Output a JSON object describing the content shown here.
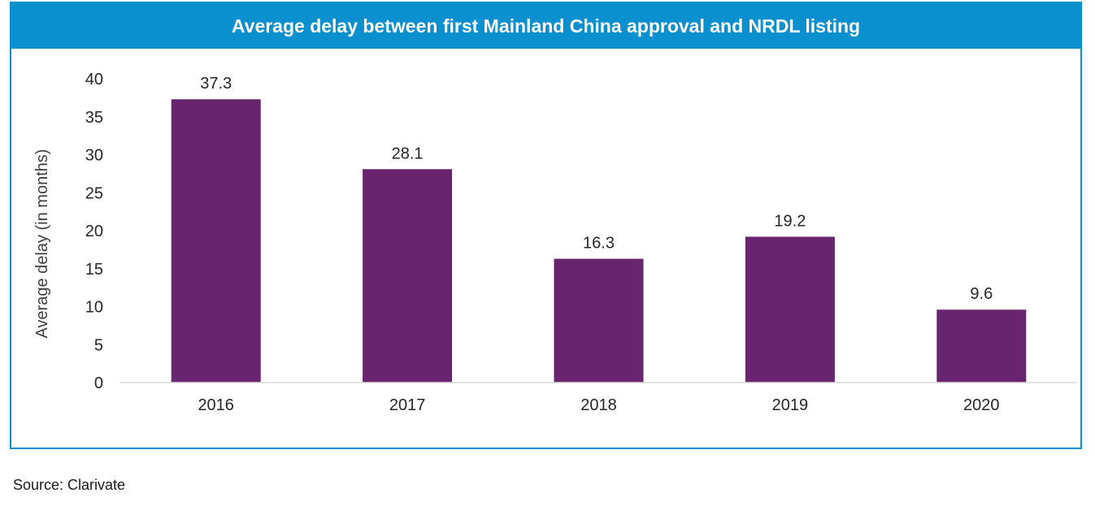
{
  "chart_data": {
    "type": "bar",
    "title": "Average delay between first Mainland China approval and NRDL listing",
    "categories": [
      "2016",
      "2017",
      "2018",
      "2019",
      "2020"
    ],
    "values": [
      37.3,
      28.1,
      16.3,
      19.2,
      9.6
    ],
    "data_labels": [
      "37.3",
      "28.1",
      "16.3",
      "19.2",
      "9.6"
    ],
    "xlabel": "",
    "ylabel": "Average delay (in months)",
    "ylim": [
      0,
      40
    ],
    "yticks": [
      "0",
      "5",
      "10",
      "15",
      "20",
      "25",
      "30",
      "35",
      "40"
    ],
    "grid": false,
    "legend": "none",
    "bar_color": "#68246f",
    "title_bar_color": "#0a8fcf"
  },
  "source": "Source: Clarivate"
}
